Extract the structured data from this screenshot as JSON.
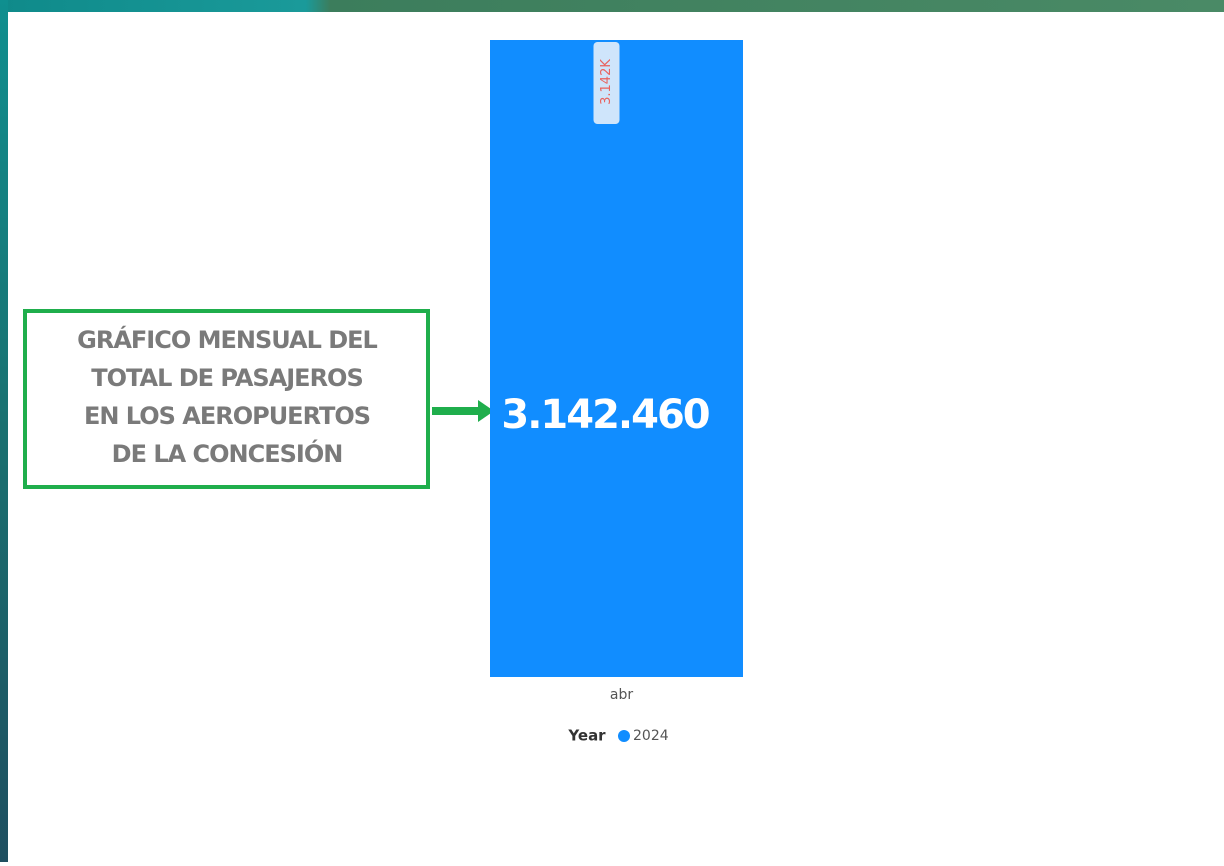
{
  "chart_data": {
    "type": "bar",
    "categories": [
      "abr"
    ],
    "series": [
      {
        "name": "2024",
        "color": "#118dff",
        "values": [
          3142460
        ],
        "value_labels": [
          "3.142K"
        ]
      }
    ],
    "ylim": [
      0,
      3142460
    ],
    "legend_title": "Year",
    "annotation": "3.142.460",
    "annotation_box": [
      "GRÁFICO MENSUAL DEL",
      "TOTAL DE PASAJEROS",
      "EN LOS AEROPUERTOS",
      "DE LA CONCESIÓN"
    ]
  }
}
